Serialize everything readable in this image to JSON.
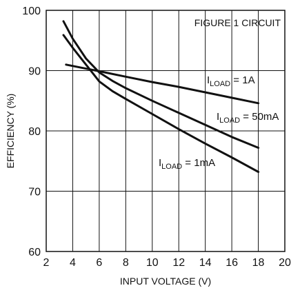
{
  "chart_data": {
    "type": "line",
    "xlabel": "INPUT VOLTAGE (V)",
    "ylabel": "EFFICIENCY (%)",
    "xlim": [
      2,
      20
    ],
    "ylim": [
      60,
      100
    ],
    "x_ticks": [
      2,
      4,
      6,
      8,
      10,
      12,
      14,
      16,
      18,
      20
    ],
    "y_ticks": [
      60,
      70,
      80,
      90,
      100
    ],
    "grid": true,
    "note": "FIGURE 1 CIRCUIT",
    "series": [
      {
        "label": {
          "prefix": "I",
          "sub": "LOAD",
          "suffix": " = 1A"
        },
        "x": [
          3.5,
          6,
          8,
          10,
          12,
          14,
          16,
          18
        ],
        "y": [
          91.0,
          89.9,
          89.0,
          88.1,
          87.3,
          86.4,
          85.5,
          84.6
        ]
      },
      {
        "label": {
          "prefix": "I",
          "sub": "LOAD",
          "suffix": " = 50mA"
        },
        "x": [
          3.3,
          4,
          5,
          6,
          7,
          8,
          10,
          12,
          14,
          16,
          18
        ],
        "y": [
          98.2,
          95.3,
          92.0,
          89.7,
          88.3,
          87.1,
          85.0,
          83.0,
          81.0,
          79.0,
          77.2
        ]
      },
      {
        "label": {
          "prefix": "I",
          "sub": "LOAD",
          "suffix": " = 1mA"
        },
        "x": [
          3.3,
          4,
          5,
          6,
          7,
          8,
          10,
          12,
          14,
          16,
          18
        ],
        "y": [
          95.9,
          93.8,
          91.0,
          88.2,
          86.6,
          85.3,
          82.8,
          80.3,
          77.9,
          75.6,
          73.2
        ]
      }
    ]
  }
}
